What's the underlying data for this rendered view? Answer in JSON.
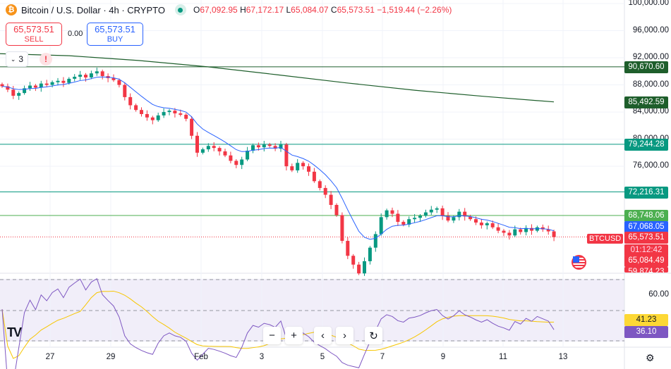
{
  "header": {
    "symbol_title": "Bitcoin / U.S. Dollar · 4h · CRYPTO",
    "open_label": "O",
    "open": "67,092.95",
    "high_label": "H",
    "high": "67,172.17",
    "low_label": "L",
    "low": "65,084.07",
    "close_label": "C",
    "close": "65,573.51",
    "change": "−1,519.44 (−2.26%)"
  },
  "trade": {
    "sell_price": "65,573.51",
    "sell_label": "SELL",
    "spread": "0.00",
    "buy_price": "65,573.51",
    "buy_label": "BUY"
  },
  "indicators_collapsed": {
    "count": "3",
    "warning": "!"
  },
  "price_axis": {
    "labels": [
      {
        "v": 100000,
        "t": "100,000.00"
      },
      {
        "v": 96000,
        "t": "96,000.00"
      },
      {
        "v": 92000,
        "t": "92,000.00"
      },
      {
        "v": 88000,
        "t": "88,000.00"
      },
      {
        "v": 84000,
        "t": "84,000.00"
      },
      {
        "v": 80000,
        "t": "80,000.00"
      },
      {
        "v": 76000,
        "t": "76,000.00"
      }
    ]
  },
  "levels": [
    {
      "v": 90670.6,
      "t": "90,670.60",
      "color": "#1e5e2b",
      "line": true
    },
    {
      "v": 85492.59,
      "t": "85,492.59",
      "color": "#1e5e2b",
      "line": false
    },
    {
      "v": 79244.28,
      "t": "79,244.28",
      "color": "#089981",
      "line": true
    },
    {
      "v": 72216.31,
      "t": "72,216.31",
      "color": "#089981",
      "line": true
    },
    {
      "v": 68748.06,
      "t": "68,748.06",
      "color": "#4caf50",
      "line": true
    },
    {
      "v": 67068.05,
      "t": "67,068.05",
      "color": "#2962ff",
      "line": false
    },
    {
      "v": 65573.51,
      "t": "65,573.51",
      "color": "#f23645",
      "line": false
    }
  ],
  "last_price": {
    "symbol": "BTCUSD",
    "countdown": "01:12:42",
    "low_tag": "65,084.49",
    "cut_tag": "59,874.23"
  },
  "chart_data": {
    "type": "candlestick",
    "up_color": "#089981",
    "down_color": "#f23645",
    "closes": [
      87800,
      87300,
      86400,
      86800,
      87500,
      87900,
      87600,
      88200,
      88000,
      88400,
      88600,
      88300,
      88900,
      89200,
      89500,
      89100,
      89700,
      90000,
      89300,
      89000,
      88700,
      88000,
      86200,
      85000,
      84300,
      83700,
      83200,
      82800,
      83500,
      84000,
      84200,
      83800,
      83600,
      83000,
      80500,
      78000,
      78500,
      79000,
      78700,
      78200,
      77600,
      76800,
      76200,
      77000,
      78300,
      79100,
      78800,
      79200,
      79000,
      78600,
      79200,
      76000,
      75400,
      76500,
      76000,
      75200,
      73800,
      72800,
      71800,
      70300,
      68800,
      65000,
      62800,
      61500,
      60200,
      62000,
      64000,
      66000,
      68500,
      69500,
      69000,
      67800,
      67400,
      68200,
      68400,
      68700,
      69200,
      69600,
      69800,
      68700,
      68000,
      68500,
      69300,
      68600,
      68200,
      67700,
      67300,
      67600,
      67000,
      66500,
      66200,
      65800,
      66700,
      66300,
      66900,
      66500,
      67000,
      66700,
      66400,
      65573.51
    ],
    "ema_color": "#2962ff",
    "ma200": {
      "color": "#1e5e2b",
      "values": [
        92600,
        92300,
        91600,
        90670,
        89500,
        88300,
        87200,
        86300,
        85492.59
      ]
    },
    "x_ticks": [
      "27",
      "29",
      "Feb",
      "3",
      "5",
      "7",
      "9",
      "11",
      "13"
    ]
  },
  "rsi": {
    "ticks": [
      {
        "v": 60,
        "t": "60.00"
      }
    ],
    "ma_value": "41.23",
    "rsi_value": "36.10",
    "rsi_color": "#7e57c2",
    "ma_color": "#f7c600"
  },
  "nav_buttons": [
    "−",
    "+",
    "‹",
    "›",
    "↻"
  ]
}
